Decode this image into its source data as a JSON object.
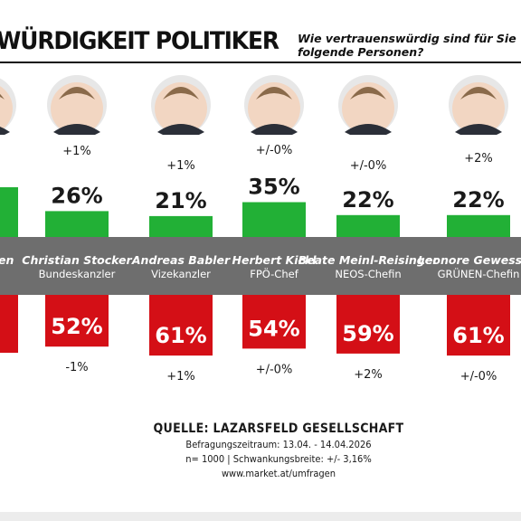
{
  "header": {
    "title": "WÜRDIGKEIT POLITIKER",
    "question_line1": "Wie vertrauenswürdig sind für Sie",
    "question_line2": "folgende Personen?"
  },
  "colors": {
    "positive": "#22b036",
    "negative": "#d40f16",
    "band": "#6e6e6e",
    "text": "#1a1a1a"
  },
  "chart_data": {
    "type": "bar",
    "title": "",
    "categories": [
      "… Bellen",
      "Christian Stocker",
      "Andreas Babler",
      "Herbert Kickl",
      "Beate Meinl-Reisinger",
      "Leonore Gewessler"
    ],
    "roles": [
      "…nt",
      "Bundeskanzler",
      "Vizekanzler",
      "FPÖ-Chef",
      "NEOS-Chefin",
      "GRÜNEN-Chefin"
    ],
    "series": [
      {
        "name": "vertrauenswürdig",
        "values": [
          null,
          26,
          21,
          35,
          22,
          22
        ],
        "labels": [
          "",
          "26%",
          "21%",
          "35%",
          "22%",
          "22%"
        ],
        "changes": [
          "",
          "+1%",
          "+1%",
          "+/-0%",
          "+/-0%",
          "+2%"
        ]
      },
      {
        "name": "nicht vertrauenswürdig",
        "values": [
          null,
          52,
          61,
          54,
          59,
          61
        ],
        "labels": [
          "",
          "52%",
          "61%",
          "54%",
          "59%",
          "61%"
        ],
        "changes": [
          "",
          "-1%",
          "+1%",
          "+/-0%",
          "+2%",
          "+/-0%"
        ]
      }
    ],
    "ylabel": "",
    "grid": false,
    "legend": "none"
  },
  "footer": {
    "source": "QUELLE: LAZARSFELD GESELLSCHAFT",
    "period": "Befragungszeitraum: 13.04. - 14.04.2026",
    "sample": "n= 1000 | Schwankungsbreite: +/- 3,16%",
    "url": "www.market.at/umfragen"
  }
}
